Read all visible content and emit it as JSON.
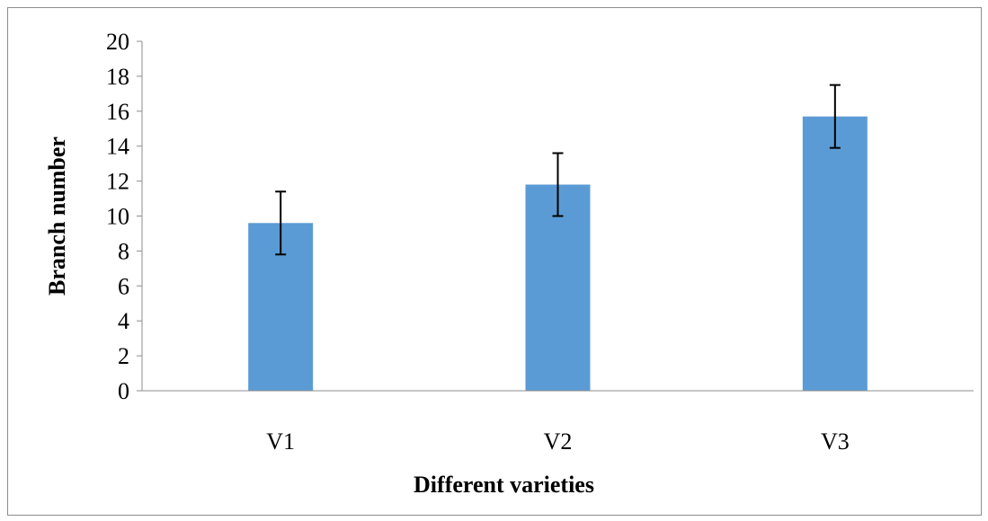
{
  "chart_data": {
    "type": "bar",
    "title": "",
    "xlabel": "Different varieties",
    "ylabel": "Branch number",
    "categories": [
      "V1",
      "V2",
      "V3"
    ],
    "values": [
      9.6,
      11.8,
      15.7
    ],
    "error": [
      1.8,
      1.8,
      1.8
    ],
    "ylim": [
      0,
      20
    ],
    "yticks": [
      0,
      2,
      4,
      6,
      8,
      10,
      12,
      14,
      16,
      18,
      20
    ],
    "ytick_labels": [
      "0",
      "2",
      "4",
      "6",
      "8",
      "10",
      "12",
      "14",
      "16",
      "18",
      "20"
    ],
    "grid": false,
    "legend": "none",
    "bar_color": "#5b9bd5",
    "axis_color": "#8c8c8c"
  }
}
